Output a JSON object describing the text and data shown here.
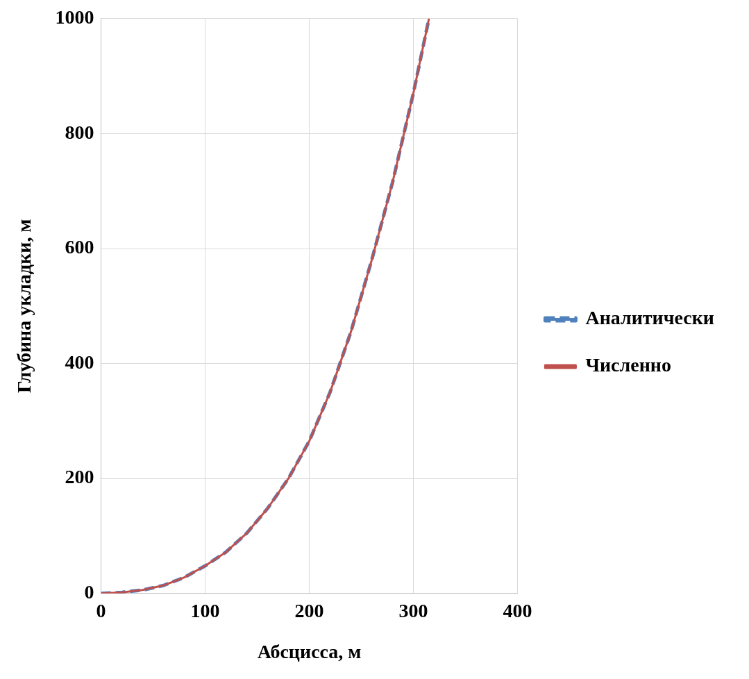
{
  "chart_data": {
    "type": "line",
    "xlabel": "Абсцисса, м",
    "ylabel": "Глубина укладки, м",
    "x": [
      0,
      20,
      40,
      60,
      80,
      100,
      120,
      140,
      160,
      180,
      200,
      220,
      240,
      260,
      280,
      300,
      315
    ],
    "series": [
      {
        "name": "Аналитически",
        "color": "#4f81bd",
        "line_style": "dashed",
        "values": [
          0,
          2,
          6,
          14,
          28,
          48,
          72,
          105,
          148,
          200,
          265,
          350,
          455,
          580,
          715,
          870,
          1000
        ]
      },
      {
        "name": "Численно",
        "color": "#c0504d",
        "line_style": "solid",
        "values": [
          0,
          2,
          6,
          14,
          28,
          48,
          72,
          105,
          148,
          200,
          265,
          350,
          455,
          580,
          715,
          870,
          1000
        ]
      }
    ],
    "xlim": [
      0,
      400
    ],
    "xticks": [
      0,
      100,
      200,
      300,
      400
    ],
    "ylim": [
      0,
      1000
    ],
    "yticks": [
      0,
      200,
      400,
      600,
      800,
      1000
    ],
    "grid": true,
    "legend": "right",
    "marker": "none"
  }
}
